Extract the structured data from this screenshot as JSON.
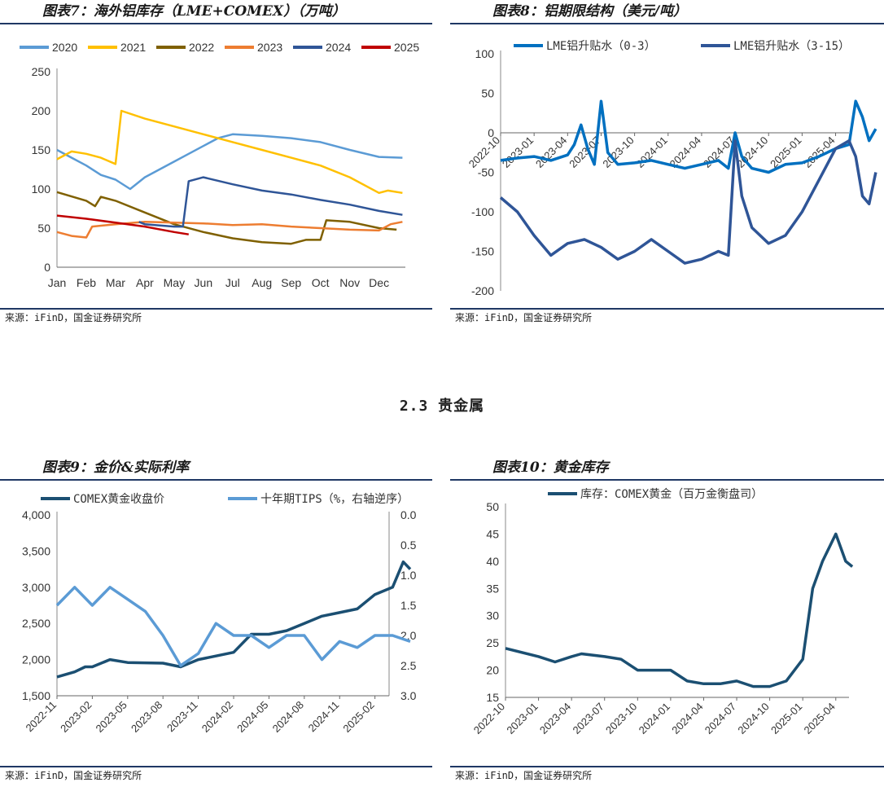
{
  "panels": {
    "p7": {
      "title": "图表7：海外铝库存（LME+COMEX）（万吨）",
      "source": "来源：iFinD，国金证券研究所"
    },
    "p8": {
      "title": "图表8：铝期限结构（美元/吨）",
      "source": "来源：iFinD，国金证券研究所"
    },
    "p9": {
      "title": "图表9：金价&实际利率",
      "source": "来源：iFinD，国金证券研究所"
    },
    "p10": {
      "title": "图表10：黄金库存",
      "source": "来源：iFinD，国金证券研究所"
    }
  },
  "section_title": "2.3 贵金属",
  "chart_data": [
    {
      "id": "c7",
      "type": "line",
      "x": [
        "Jan",
        "Feb",
        "Mar",
        "Apr",
        "May",
        "Jun",
        "Jul",
        "Aug",
        "Sep",
        "Oct",
        "Nov",
        "Dec"
      ],
      "yticks": [
        0,
        50,
        100,
        150,
        200,
        250
      ],
      "ylim": [
        0,
        250
      ],
      "legend": "top",
      "series": [
        {
          "name": "2020",
          "color": "#5b9bd5",
          "values": [
            [
              0,
              150
            ],
            [
              0.5,
              140
            ],
            [
              1,
              130
            ],
            [
              1.5,
              118
            ],
            [
              2,
              112
            ],
            [
              2.5,
              100
            ],
            [
              3,
              115
            ],
            [
              3.5,
              125
            ],
            [
              4,
              135
            ],
            [
              4.5,
              145
            ],
            [
              5,
              155
            ],
            [
              5.5,
              165
            ],
            [
              6,
              170
            ],
            [
              7,
              168
            ],
            [
              8,
              165
            ],
            [
              9,
              160
            ],
            [
              10,
              150
            ],
            [
              11,
              141
            ],
            [
              11.8,
              140
            ]
          ]
        },
        {
          "name": "2021",
          "color": "#ffc000",
          "values": [
            [
              0,
              138
            ],
            [
              0.5,
              148
            ],
            [
              1,
              145
            ],
            [
              1.5,
              140
            ],
            [
              2,
              132
            ],
            [
              2.2,
              200
            ],
            [
              3,
              190
            ],
            [
              4,
              180
            ],
            [
              5,
              170
            ],
            [
              6,
              160
            ],
            [
              7,
              150
            ],
            [
              8,
              140
            ],
            [
              9,
              130
            ],
            [
              10,
              115
            ],
            [
              11,
              95
            ],
            [
              11.3,
              98
            ],
            [
              11.8,
              95
            ]
          ]
        },
        {
          "name": "2022",
          "color": "#7f6000",
          "values": [
            [
              0,
              96
            ],
            [
              1,
              85
            ],
            [
              1.3,
              78
            ],
            [
              1.5,
              90
            ],
            [
              2,
              85
            ],
            [
              3,
              70
            ],
            [
              4,
              55
            ],
            [
              5,
              45
            ],
            [
              6,
              37
            ],
            [
              7,
              32
            ],
            [
              8,
              30
            ],
            [
              8.5,
              35
            ],
            [
              9,
              35
            ],
            [
              9.2,
              60
            ],
            [
              10,
              58
            ],
            [
              11,
              50
            ],
            [
              11.6,
              48
            ]
          ]
        },
        {
          "name": "2023",
          "color": "#ed7d31",
          "values": [
            [
              0,
              45
            ],
            [
              0.5,
              40
            ],
            [
              1,
              38
            ],
            [
              1.2,
              52
            ],
            [
              2,
              55
            ],
            [
              3,
              58
            ],
            [
              4,
              57
            ],
            [
              5,
              56
            ],
            [
              6,
              54
            ],
            [
              7,
              55
            ],
            [
              8,
              52
            ],
            [
              9,
              50
            ],
            [
              10,
              48
            ],
            [
              11,
              47
            ],
            [
              11.4,
              55
            ],
            [
              11.8,
              58
            ]
          ]
        },
        {
          "name": "2024",
          "color": "#2f5597",
          "values": [
            [
              2.8,
              58
            ],
            [
              3,
              55
            ],
            [
              4,
              52
            ],
            [
              4.3,
              52
            ],
            [
              4.5,
              110
            ],
            [
              5,
              115
            ],
            [
              6,
              106
            ],
            [
              7,
              98
            ],
            [
              8,
              93
            ],
            [
              9,
              86
            ],
            [
              10,
              80
            ],
            [
              11,
              72
            ],
            [
              11.8,
              67
            ]
          ]
        },
        {
          "name": "2025",
          "color": "#c00000",
          "values": [
            [
              0,
              66
            ],
            [
              1,
              62
            ],
            [
              2,
              57
            ],
            [
              3,
              52
            ],
            [
              4,
              45
            ],
            [
              4.5,
              42
            ]
          ]
        }
      ]
    },
    {
      "id": "c8",
      "type": "line",
      "x": [
        "2022-10",
        "2023-01",
        "2023-04",
        "2023-07",
        "2023-10",
        "2024-01",
        "2024-04",
        "2024-07",
        "2024-10",
        "2025-01",
        "2025-04"
      ],
      "yticks": [
        100,
        50,
        0,
        -50,
        -100,
        -150,
        -200
      ],
      "ylim": [
        -200,
        100
      ],
      "legend": "top",
      "series": [
        {
          "name": "LME铝升贴水（0-3）",
          "color": "#0070c0",
          "values": [
            [
              0,
              -35
            ],
            [
              0.5,
              -32
            ],
            [
              1,
              -30
            ],
            [
              1.5,
              -35
            ],
            [
              2,
              -28
            ],
            [
              2.2,
              -15
            ],
            [
              2.4,
              10
            ],
            [
              2.6,
              -20
            ],
            [
              2.8,
              -40
            ],
            [
              3,
              40
            ],
            [
              3.2,
              -25
            ],
            [
              3.5,
              -40
            ],
            [
              4,
              -38
            ],
            [
              4.5,
              -35
            ],
            [
              5,
              -40
            ],
            [
              5.5,
              -45
            ],
            [
              6,
              -40
            ],
            [
              6.5,
              -35
            ],
            [
              6.8,
              -45
            ],
            [
              7,
              0
            ],
            [
              7.2,
              -30
            ],
            [
              7.5,
              -45
            ],
            [
              8,
              -50
            ],
            [
              8.5,
              -40
            ],
            [
              9,
              -38
            ],
            [
              9.5,
              -30
            ],
            [
              10,
              -20
            ],
            [
              10.4,
              -15
            ],
            [
              10.6,
              40
            ],
            [
              10.8,
              20
            ],
            [
              11,
              -10
            ],
            [
              11.2,
              5
            ]
          ]
        },
        {
          "name": "LME铝升贴水（3-15）",
          "color": "#2f5597",
          "values": [
            [
              0,
              -82
            ],
            [
              0.5,
              -100
            ],
            [
              1,
              -130
            ],
            [
              1.5,
              -155
            ],
            [
              2,
              -140
            ],
            [
              2.5,
              -135
            ],
            [
              3,
              -145
            ],
            [
              3.5,
              -160
            ],
            [
              4,
              -150
            ],
            [
              4.5,
              -135
            ],
            [
              5,
              -150
            ],
            [
              5.5,
              -165
            ],
            [
              6,
              -160
            ],
            [
              6.5,
              -150
            ],
            [
              6.8,
              -155
            ],
            [
              7,
              -10
            ],
            [
              7.2,
              -80
            ],
            [
              7.5,
              -120
            ],
            [
              8,
              -140
            ],
            [
              8.5,
              -130
            ],
            [
              9,
              -100
            ],
            [
              9.5,
              -60
            ],
            [
              10,
              -20
            ],
            [
              10.4,
              -10
            ],
            [
              10.6,
              -30
            ],
            [
              10.8,
              -80
            ],
            [
              11,
              -90
            ],
            [
              11.2,
              -50
            ]
          ]
        }
      ]
    },
    {
      "id": "c9",
      "type": "line",
      "x": [
        "2022-11",
        "2023-02",
        "2023-05",
        "2023-08",
        "2023-11",
        "2024-02",
        "2024-05",
        "2024-08",
        "2024-11",
        "2025-02"
      ],
      "yticks_left": [
        "4,000",
        "3,500",
        "3,000",
        "2,500",
        "2,000",
        "1,500"
      ],
      "yticks_right": [
        "0.0",
        "0.5",
        "1.0",
        "1.5",
        "2.0",
        "2.5",
        "3.0"
      ],
      "ylim_left": [
        1500,
        4000
      ],
      "ylim_right": [
        0,
        3
      ],
      "legend": "top",
      "series": [
        {
          "name": "COMEX黄金收盘价",
          "color": "#1b4f72",
          "axis": "left",
          "values": [
            [
              0,
              1760
            ],
            [
              0.5,
              1830
            ],
            [
              0.8,
              1900
            ],
            [
              1,
              1900
            ],
            [
              1.5,
              2000
            ],
            [
              2,
              1960
            ],
            [
              3,
              1950
            ],
            [
              3.5,
              1900
            ],
            [
              4,
              2000
            ],
            [
              4.5,
              2050
            ],
            [
              5,
              2100
            ],
            [
              5.5,
              2350
            ],
            [
              6,
              2350
            ],
            [
              6.5,
              2400
            ],
            [
              7,
              2500
            ],
            [
              7.5,
              2600
            ],
            [
              8,
              2650
            ],
            [
              8.5,
              2700
            ],
            [
              9,
              2900
            ],
            [
              9.5,
              3000
            ],
            [
              9.8,
              3350
            ],
            [
              10,
              3250
            ]
          ]
        },
        {
          "name": "十年期TIPS（%，右轴逆序）",
          "color": "#5b9bd5",
          "axis": "right",
          "values": [
            [
              0,
              1.5
            ],
            [
              0.5,
              1.2
            ],
            [
              1,
              1.5
            ],
            [
              1.5,
              1.2
            ],
            [
              2,
              1.4
            ],
            [
              2.5,
              1.6
            ],
            [
              3,
              2.0
            ],
            [
              3.5,
              2.5
            ],
            [
              4,
              2.3
            ],
            [
              4.5,
              1.8
            ],
            [
              5,
              2.0
            ],
            [
              5.5,
              2.0
            ],
            [
              6,
              2.2
            ],
            [
              6.5,
              2.0
            ],
            [
              7,
              2.0
            ],
            [
              7.5,
              2.4
            ],
            [
              8,
              2.1
            ],
            [
              8.5,
              2.2
            ],
            [
              9,
              2.0
            ],
            [
              9.5,
              2.0
            ],
            [
              10,
              2.1
            ]
          ]
        }
      ]
    },
    {
      "id": "c10",
      "type": "line",
      "x": [
        "2022-10",
        "2023-01",
        "2023-04",
        "2023-07",
        "2023-10",
        "2024-01",
        "2024-04",
        "2024-07",
        "2024-10",
        "2025-01",
        "2025-04"
      ],
      "yticks": [
        15,
        20,
        25,
        30,
        35,
        40,
        45,
        50
      ],
      "ylim": [
        15,
        50
      ],
      "legend": "top",
      "series": [
        {
          "name": "库存：COMEX黄金（百万金衡盘司）",
          "color": "#1b4f72",
          "values": [
            [
              0,
              24
            ],
            [
              1,
              22.5
            ],
            [
              1.5,
              21.5
            ],
            [
              2,
              22.5
            ],
            [
              2.3,
              23
            ],
            [
              3,
              22.5
            ],
            [
              3.5,
              22
            ],
            [
              4,
              20
            ],
            [
              5,
              20
            ],
            [
              5.5,
              18
            ],
            [
              6,
              17.5
            ],
            [
              6.5,
              17.5
            ],
            [
              7,
              18
            ],
            [
              7.5,
              17
            ],
            [
              8,
              17
            ],
            [
              8.5,
              18
            ],
            [
              9,
              22
            ],
            [
              9.3,
              35
            ],
            [
              9.6,
              40
            ],
            [
              10,
              45
            ],
            [
              10.3,
              40
            ],
            [
              10.5,
              39
            ]
          ]
        }
      ]
    }
  ]
}
